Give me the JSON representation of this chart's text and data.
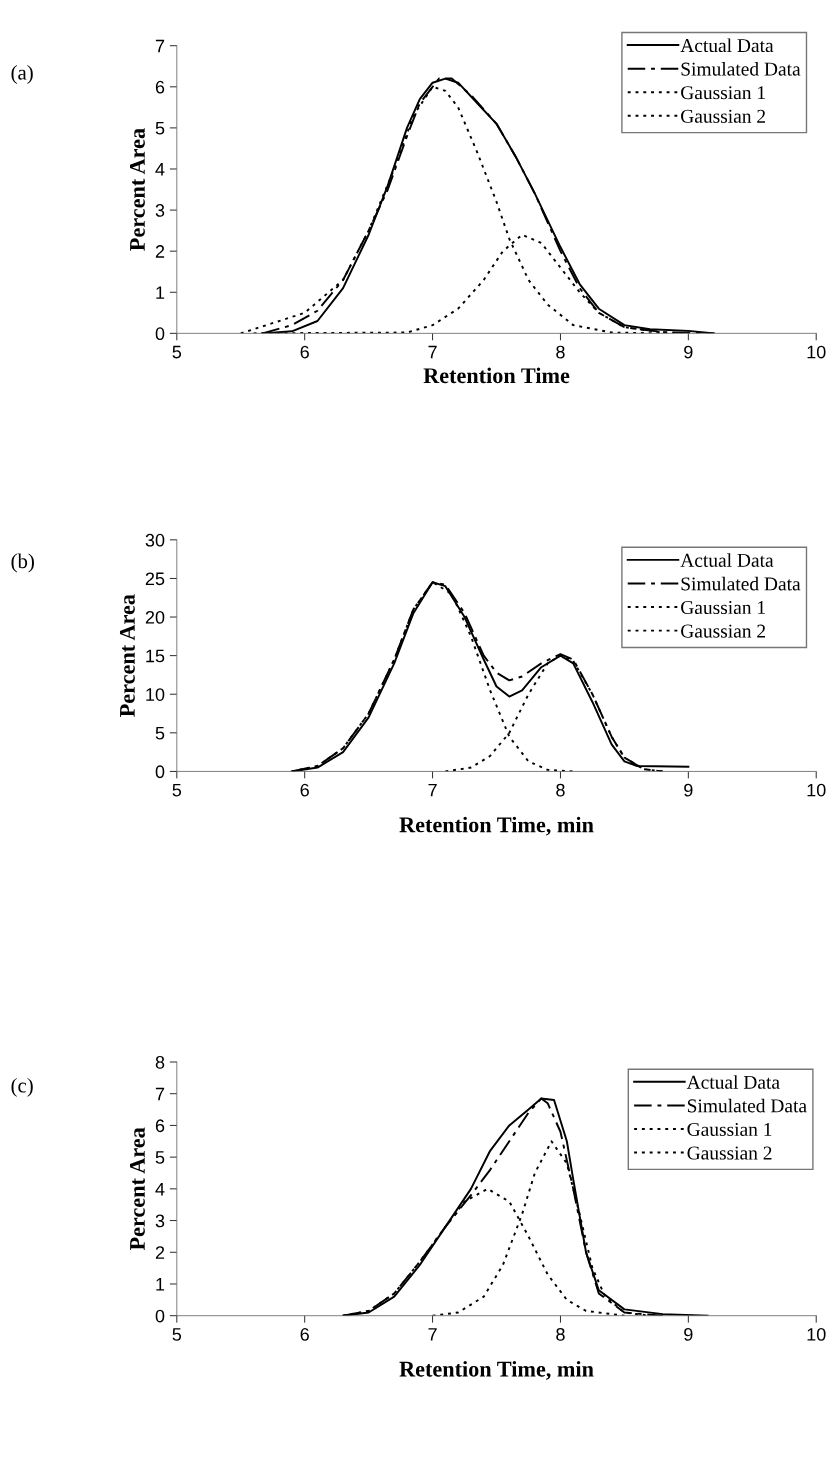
{
  "chart_data": [
    {
      "type": "line",
      "xlabel": "Retention Time",
      "ylabel": "Percent Area",
      "annotations": [
        "(a)"
      ],
      "xlim": [
        5,
        10
      ],
      "xticks": [
        5,
        6,
        7,
        8,
        9,
        10
      ],
      "ylim": [
        0,
        7
      ],
      "yticks": [
        0,
        1,
        2,
        3,
        4,
        5,
        6,
        7
      ],
      "grid": false,
      "legend": "top right",
      "marker": "none",
      "series": [
        {
          "name": "Actual Data",
          "color": "#000000",
          "line_style": "solid",
          "x": [
            5.67,
            5.9,
            6.1,
            6.3,
            6.5,
            6.65,
            6.8,
            6.9,
            7.0,
            7.1,
            7.2,
            7.35,
            7.5,
            7.65,
            7.8,
            8.0,
            8.15,
            8.3,
            8.5,
            8.7,
            9.0,
            9.2
          ],
          "values": [
            0,
            0.05,
            0.3,
            1.1,
            2.4,
            3.6,
            5.0,
            5.7,
            6.1,
            6.2,
            6.1,
            5.6,
            5.1,
            4.3,
            3.4,
            2.1,
            1.2,
            0.6,
            0.2,
            0.1,
            0.06,
            0
          ]
        },
        {
          "name": "Simulated Data",
          "color": "#000000",
          "line_style": "dashed",
          "x": [
            5.67,
            5.9,
            6.1,
            6.3,
            6.5,
            6.65,
            6.8,
            6.9,
            7.0,
            7.05,
            7.15,
            7.3,
            7.5,
            7.65,
            7.8,
            8.0,
            8.15,
            8.3,
            8.5,
            8.8,
            9.2
          ],
          "values": [
            0,
            0.2,
            0.55,
            1.3,
            2.5,
            3.5,
            4.8,
            5.6,
            6.0,
            6.2,
            6.2,
            5.8,
            5.1,
            4.3,
            3.4,
            2.0,
            1.1,
            0.5,
            0.15,
            0.03,
            0
          ]
        },
        {
          "name": "Gaussian 1",
          "color": "#000000",
          "line_style": "dotted",
          "x": [
            5.5,
            6.0,
            6.3,
            6.5,
            6.7,
            6.85,
            7.0,
            7.1,
            7.2,
            7.35,
            7.5,
            7.6,
            7.75,
            7.9,
            8.1,
            8.4,
            8.8
          ],
          "values": [
            0,
            0.5,
            1.3,
            2.5,
            4.0,
            5.3,
            6.0,
            5.9,
            5.5,
            4.4,
            3.2,
            2.3,
            1.3,
            0.7,
            0.2,
            0.02,
            0
          ]
        },
        {
          "name": "Gaussian 2",
          "color": "#000000",
          "line_style": "dotted",
          "x": [
            5.6,
            6.8,
            7.0,
            7.2,
            7.4,
            7.55,
            7.7,
            7.85,
            8.0,
            8.15,
            8.3,
            8.5,
            8.8,
            9.0
          ],
          "values": [
            0,
            0.02,
            0.2,
            0.6,
            1.3,
            2.0,
            2.4,
            2.2,
            1.6,
            1.0,
            0.5,
            0.15,
            0.02,
            0
          ]
        }
      ]
    },
    {
      "type": "line",
      "xlabel": "Retention Time, min",
      "ylabel": "Percent Area",
      "annotations": [
        "(b)"
      ],
      "xlim": [
        5,
        10
      ],
      "xticks": [
        5,
        6,
        7,
        8,
        9,
        10
      ],
      "ylim": [
        0,
        30
      ],
      "yticks": [
        0,
        5,
        10,
        15,
        20,
        25,
        30
      ],
      "grid": false,
      "legend": "top right",
      "marker": "none",
      "series": [
        {
          "name": "Actual Data",
          "color": "#000000",
          "line_style": "solid",
          "x": [
            5.9,
            6.1,
            6.3,
            6.5,
            6.7,
            6.85,
            7.0,
            7.1,
            7.25,
            7.4,
            7.5,
            7.6,
            7.7,
            7.85,
            8.0,
            8.1,
            8.25,
            8.4,
            8.5,
            8.6,
            9.0
          ],
          "values": [
            0,
            0.5,
            2.5,
            7,
            14,
            20.5,
            24.5,
            24,
            20,
            14.5,
            11,
            9.7,
            10.5,
            13.5,
            15,
            14,
            9,
            3.5,
            1.3,
            0.7,
            0.6
          ]
        },
        {
          "name": "Simulated Data",
          "color": "#000000",
          "line_style": "dashed",
          "x": [
            5.9,
            6.1,
            6.3,
            6.5,
            6.7,
            6.85,
            7.0,
            7.1,
            7.25,
            7.4,
            7.5,
            7.6,
            7.7,
            7.85,
            8.0,
            8.1,
            8.25,
            8.4,
            8.5,
            8.65,
            8.8
          ],
          "values": [
            0,
            0.7,
            3,
            7.5,
            14.5,
            21,
            24.5,
            24.2,
            20.5,
            15,
            12.8,
            11.8,
            12.3,
            14,
            15.2,
            14.5,
            10,
            4.5,
            1.8,
            0.3,
            0
          ]
        },
        {
          "name": "Gaussian 1",
          "color": "#000000",
          "line_style": "dotted",
          "x": [
            5.9,
            6.1,
            6.3,
            6.5,
            6.7,
            6.85,
            7.0,
            7.15,
            7.3,
            7.45,
            7.6,
            7.75,
            7.9,
            8.1
          ],
          "values": [
            0,
            0.7,
            3,
            7.5,
            14.5,
            21,
            24.5,
            23,
            17.5,
            10.5,
            4.5,
            1.3,
            0.2,
            0
          ]
        },
        {
          "name": "Gaussian 2",
          "color": "#000000",
          "line_style": "dotted",
          "x": [
            7.1,
            7.3,
            7.45,
            7.6,
            7.75,
            7.9,
            8.0,
            8.1,
            8.25,
            8.4,
            8.5,
            8.65,
            8.8
          ],
          "values": [
            0,
            0.5,
            2,
            5,
            10,
            14,
            15,
            14.3,
            10,
            4.5,
            1.8,
            0.3,
            0
          ]
        }
      ]
    },
    {
      "type": "line",
      "xlabel": "Retention Time, min",
      "ylabel": "Percent Area",
      "annotations": [
        "(c)"
      ],
      "xlim": [
        5,
        10
      ],
      "xticks": [
        5,
        6,
        7,
        8,
        9,
        10
      ],
      "ylim": [
        0,
        8
      ],
      "yticks": [
        0,
        1,
        2,
        3,
        4,
        5,
        6,
        7,
        8
      ],
      "grid": false,
      "legend": "top right",
      "marker": "none",
      "series": [
        {
          "name": "Actual Data",
          "color": "#000000",
          "line_style": "solid",
          "x": [
            6.3,
            6.5,
            6.7,
            6.9,
            7.1,
            7.3,
            7.45,
            7.6,
            7.75,
            7.85,
            7.95,
            8.05,
            8.1,
            8.2,
            8.3,
            8.5,
            8.8,
            9.15
          ],
          "values": [
            0,
            0.1,
            0.6,
            1.6,
            2.8,
            4.0,
            5.2,
            6.0,
            6.5,
            6.85,
            6.8,
            5.5,
            4.3,
            2.0,
            0.8,
            0.2,
            0.05,
            0
          ]
        },
        {
          "name": "Simulated Data",
          "color": "#000000",
          "line_style": "dashed",
          "x": [
            6.3,
            6.5,
            6.7,
            6.9,
            7.1,
            7.3,
            7.45,
            7.6,
            7.75,
            7.85,
            7.9,
            8.0,
            8.1,
            8.2,
            8.3,
            8.5,
            8.8
          ],
          "values": [
            0,
            0.15,
            0.7,
            1.7,
            2.8,
            3.8,
            4.6,
            5.5,
            6.4,
            6.85,
            6.7,
            5.8,
            4.0,
            2.0,
            0.7,
            0.1,
            0
          ]
        },
        {
          "name": "Gaussian 1",
          "color": "#000000",
          "line_style": "dotted",
          "x": [
            6.3,
            6.5,
            6.7,
            6.9,
            7.1,
            7.25,
            7.43,
            7.6,
            7.75,
            7.9,
            8.05,
            8.2,
            8.5
          ],
          "values": [
            0,
            0.15,
            0.7,
            1.7,
            2.8,
            3.6,
            4.0,
            3.6,
            2.5,
            1.3,
            0.5,
            0.15,
            0
          ]
        },
        {
          "name": "Gaussian 2",
          "color": "#000000",
          "line_style": "dotted",
          "x": [
            7.0,
            7.2,
            7.4,
            7.55,
            7.7,
            7.8,
            7.93,
            8.05,
            8.15,
            8.25,
            8.35,
            8.5,
            8.7
          ],
          "values": [
            0,
            0.1,
            0.6,
            1.6,
            3.2,
            4.5,
            5.5,
            4.8,
            3.2,
            1.5,
            0.6,
            0.1,
            0
          ]
        }
      ]
    }
  ]
}
